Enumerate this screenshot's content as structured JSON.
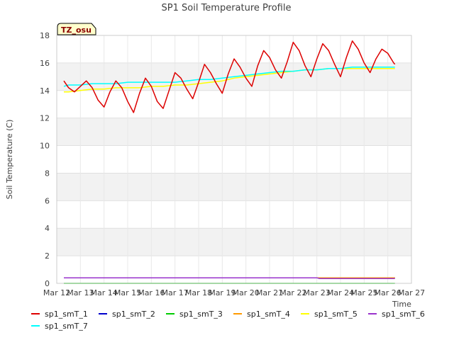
{
  "chart_data": {
    "type": "line",
    "title": "SP1 Soil Temperature Profile",
    "xlabel": "Time",
    "ylabel": "Soil Temperature (C)",
    "tag": "TZ_osu",
    "xlim": [
      12,
      27
    ],
    "ylim": [
      0,
      18
    ],
    "x_ticks": [
      {
        "x": 12,
        "label": "Mar 12"
      },
      {
        "x": 13,
        "label": "Mar 13"
      },
      {
        "x": 14,
        "label": "Mar 14"
      },
      {
        "x": 15,
        "label": "Mar 15"
      },
      {
        "x": 16,
        "label": "Mar 16"
      },
      {
        "x": 17,
        "label": "Mar 17"
      },
      {
        "x": 18,
        "label": "Mar 18"
      },
      {
        "x": 19,
        "label": "Mar 19"
      },
      {
        "x": 20,
        "label": "Mar 20"
      },
      {
        "x": 21,
        "label": "Mar 21"
      },
      {
        "x": 22,
        "label": "Mar 22"
      },
      {
        "x": 23,
        "label": "Mar 23"
      },
      {
        "x": 24,
        "label": "Mar 24"
      },
      {
        "x": 25,
        "label": "Mar 25"
      },
      {
        "x": 26,
        "label": "Mar 26"
      },
      {
        "x": 27,
        "label": "Mar 27"
      }
    ],
    "y_ticks": [
      0,
      2,
      4,
      6,
      8,
      10,
      12,
      14,
      16,
      18
    ],
    "grid": "horizontal bands",
    "legend_position": "bottom",
    "series": [
      {
        "name": "sp1_smT_1",
        "color": "#dd0000",
        "x": [
          12.3,
          12.5,
          12.75,
          13.0,
          13.25,
          13.5,
          13.75,
          14.0,
          14.25,
          14.5,
          14.75,
          15.0,
          15.25,
          15.5,
          15.75,
          16.0,
          16.25,
          16.5,
          16.75,
          17.0,
          17.25,
          17.5,
          17.75,
          18.0,
          18.25,
          18.5,
          18.75,
          19.0,
          19.25,
          19.5,
          19.75,
          20.0,
          20.25,
          20.5,
          20.75,
          21.0,
          21.25,
          21.5,
          21.75,
          22.0,
          22.25,
          22.5,
          22.75,
          23.0,
          23.25,
          23.5,
          23.75,
          24.0,
          24.25,
          24.5,
          24.75,
          25.0,
          25.25,
          25.5,
          25.75,
          26.0,
          26.25,
          26.3
        ],
        "y": [
          14.7,
          14.2,
          13.9,
          14.3,
          14.7,
          14.2,
          13.3,
          12.8,
          13.9,
          14.7,
          14.2,
          13.2,
          12.4,
          13.8,
          14.9,
          14.3,
          13.2,
          12.7,
          14.0,
          15.3,
          14.9,
          14.1,
          13.4,
          14.6,
          15.9,
          15.3,
          14.5,
          13.8,
          15.2,
          16.3,
          15.7,
          14.9,
          14.3,
          15.8,
          16.9,
          16.4,
          15.5,
          14.9,
          16.1,
          17.5,
          16.9,
          15.8,
          15.0,
          16.3,
          17.4,
          16.9,
          15.9,
          15.0,
          16.4,
          17.6,
          17.0,
          16.0,
          15.3,
          16.3,
          17.0,
          16.7,
          16.0,
          15.9
        ]
      },
      {
        "name": "sp1_smT_2",
        "color": "#0000cc",
        "x": [
          12.3,
          26.3
        ],
        "y": [
          0.4,
          0.4
        ]
      },
      {
        "name": "sp1_smT_3",
        "color": "#00cc00",
        "x": [
          12.3,
          26.3
        ],
        "y": [
          0.0,
          0.0
        ]
      },
      {
        "name": "sp1_smT_4",
        "color": "#ff9900",
        "x": [
          12.3,
          26.3
        ],
        "y": [
          0.4,
          0.4
        ]
      },
      {
        "name": "sp1_smT_5",
        "color": "#ffff00",
        "x": [
          12.3,
          12.5,
          13.0,
          13.5,
          14.0,
          14.5,
          15.0,
          15.5,
          16.0,
          16.5,
          17.0,
          17.5,
          18.0,
          18.5,
          19.0,
          19.5,
          20.0,
          20.5,
          21.0,
          21.5,
          22.0,
          22.5,
          23.0,
          23.5,
          24.0,
          24.5,
          25.0,
          25.5,
          26.0,
          26.3
        ],
        "y": [
          13.9,
          13.9,
          14.0,
          14.1,
          14.1,
          14.2,
          14.2,
          14.2,
          14.3,
          14.3,
          14.4,
          14.4,
          14.5,
          14.6,
          14.7,
          14.9,
          15.0,
          15.1,
          15.2,
          15.3,
          15.4,
          15.5,
          15.5,
          15.6,
          15.6,
          15.6,
          15.6,
          15.6,
          15.6,
          15.6
        ]
      },
      {
        "name": "sp1_smT_6",
        "color": "#9933cc",
        "x": [
          12.3,
          23.0,
          23.1,
          26.3
        ],
        "y": [
          0.4,
          0.4,
          0.35,
          0.35
        ]
      },
      {
        "name": "sp1_smT_7",
        "color": "#00ffff",
        "x": [
          12.3,
          12.5,
          13.0,
          13.5,
          14.0,
          14.5,
          15.0,
          15.5,
          16.0,
          16.5,
          17.0,
          17.5,
          18.0,
          18.5,
          19.0,
          19.5,
          20.0,
          20.5,
          21.0,
          21.5,
          22.0,
          22.5,
          23.0,
          23.5,
          24.0,
          24.5,
          25.0,
          25.5,
          26.0,
          26.3
        ],
        "y": [
          14.3,
          14.4,
          14.4,
          14.5,
          14.5,
          14.5,
          14.6,
          14.6,
          14.6,
          14.6,
          14.6,
          14.7,
          14.8,
          14.8,
          14.9,
          15.0,
          15.1,
          15.2,
          15.3,
          15.4,
          15.4,
          15.5,
          15.5,
          15.6,
          15.6,
          15.7,
          15.7,
          15.7,
          15.7,
          15.7
        ]
      }
    ]
  }
}
